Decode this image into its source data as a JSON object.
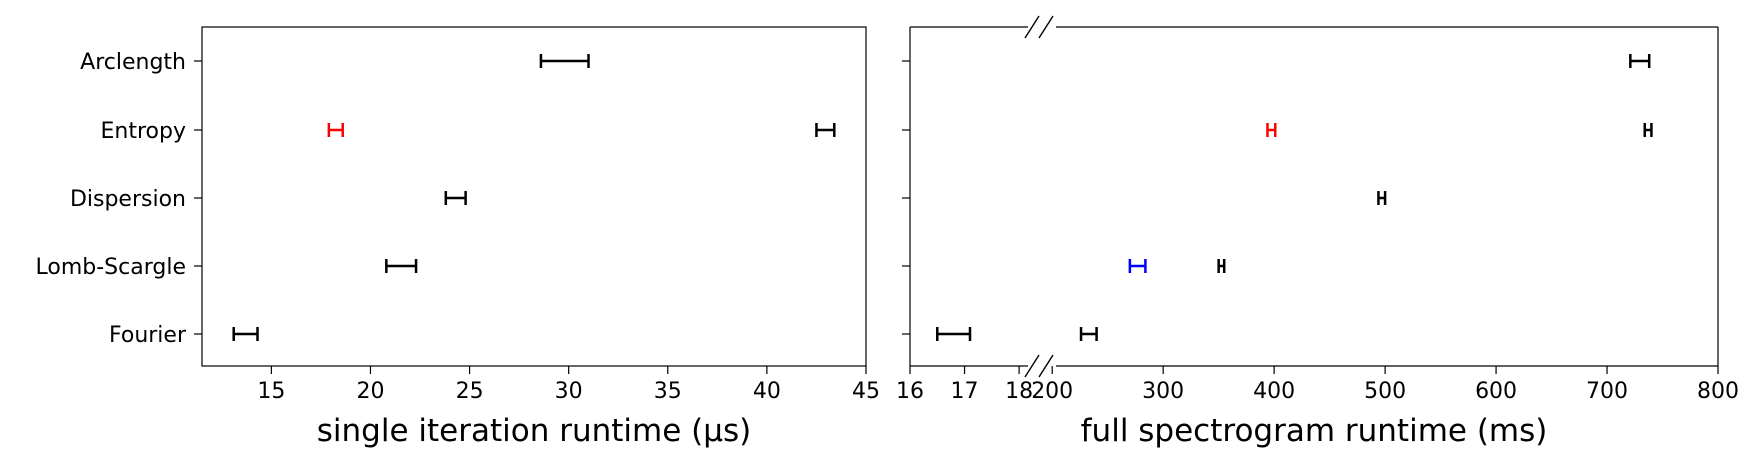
{
  "chart_data": [
    {
      "type": "errorbar",
      "xlabel": "single iteration runtime (μs)",
      "xlim": [
        11.5,
        45
      ],
      "xticks": [
        15,
        20,
        25,
        30,
        35,
        40,
        45
      ],
      "categories": [
        "Arclength",
        "Entropy",
        "Dispersion",
        "Lomb-Scargle",
        "Fourier"
      ],
      "points": [
        {
          "category": "Arclength",
          "low": 28.6,
          "high": 31.0,
          "color": "#000000"
        },
        {
          "category": "Entropy",
          "low": 17.9,
          "high": 18.6,
          "color": "#ff0000"
        },
        {
          "category": "Entropy",
          "low": 42.5,
          "high": 43.4,
          "color": "#000000"
        },
        {
          "category": "Dispersion",
          "low": 23.8,
          "high": 24.8,
          "color": "#000000"
        },
        {
          "category": "Lomb-Scargle",
          "low": 20.8,
          "high": 22.3,
          "color": "#000000"
        },
        {
          "category": "Fourier",
          "low": 13.1,
          "high": 14.3,
          "color": "#000000"
        }
      ]
    },
    {
      "type": "errorbar",
      "xlabel": "full spectrogram runtime (ms)",
      "broken_axis": true,
      "segments": [
        {
          "xlim": [
            16,
            18.2
          ],
          "xticks": [
            16,
            17,
            18
          ]
        },
        {
          "xlim": [
            180,
            800
          ],
          "xticks": [
            200,
            300,
            400,
            500,
            600,
            700,
            800
          ]
        }
      ],
      "categories": [
        "Arclength",
        "Entropy",
        "Dispersion",
        "Lomb-Scargle",
        "Fourier"
      ],
      "points": [
        {
          "category": "Arclength",
          "low": 721,
          "high": 738,
          "color": "#000000"
        },
        {
          "category": "Entropy",
          "low": 394,
          "high": 401,
          "color": "#ff0000"
        },
        {
          "category": "Entropy",
          "low": 734,
          "high": 740,
          "color": "#000000"
        },
        {
          "category": "Dispersion",
          "low": 494,
          "high": 500,
          "color": "#000000"
        },
        {
          "category": "Lomb-Scargle",
          "low": 270,
          "high": 284,
          "color": "#0000ff"
        },
        {
          "category": "Lomb-Scargle",
          "low": 350,
          "high": 355,
          "color": "#000000"
        },
        {
          "category": "Fourier",
          "low": 16.5,
          "high": 17.1,
          "color": "#000000"
        },
        {
          "category": "Fourier",
          "low": 226,
          "high": 240,
          "color": "#000000"
        }
      ]
    }
  ]
}
